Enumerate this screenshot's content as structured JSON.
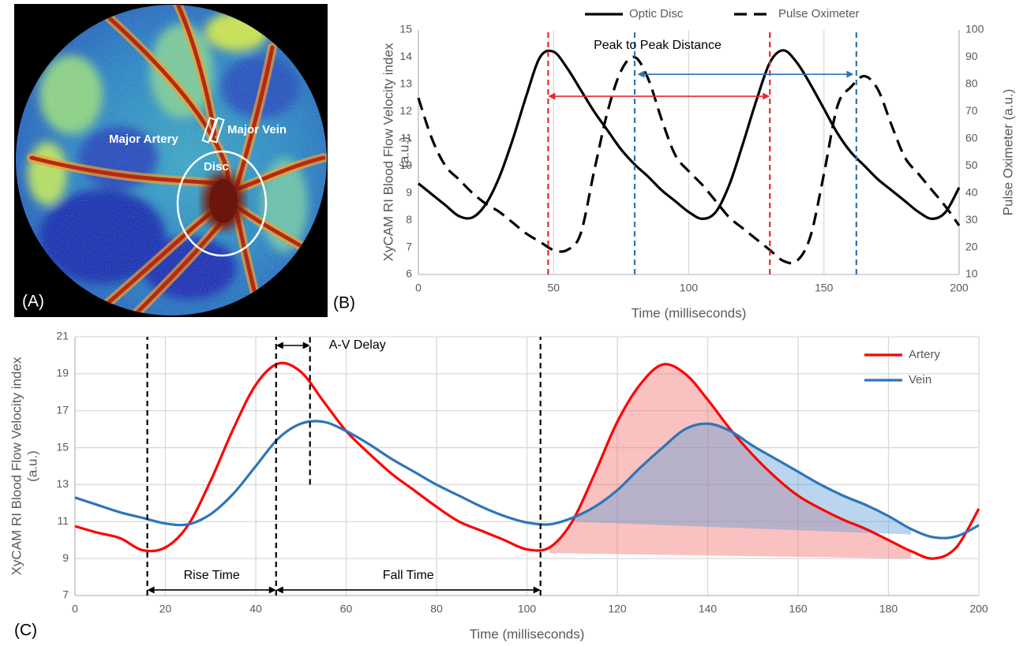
{
  "panel_a": {
    "panel_label": "(A)",
    "labels": [
      "Major Artery",
      "Major Vein",
      "Disc"
    ]
  },
  "chart_data": [
    {
      "type": "line",
      "panel_label": "(B)",
      "note": "Peak to Peak Distance",
      "x_label": "Time (milliseconds)",
      "y_label": [
        "XyCAM RI Blood Flow Velocity index",
        "(a.u.)"
      ],
      "y2_label": "Pulse Oximeter (a.u.)",
      "x": [
        0,
        5,
        10,
        15,
        20,
        25,
        30,
        35,
        40,
        45,
        50,
        55,
        60,
        65,
        70,
        75,
        80,
        85,
        90,
        95,
        100,
        105,
        110,
        115,
        120,
        125,
        130,
        135,
        140,
        145,
        150,
        155,
        160,
        165,
        170,
        175,
        180,
        185,
        190,
        195,
        200
      ],
      "series": [
        {
          "name": "Optic Disc",
          "color": "#000000",
          "dash": false,
          "values": [
            9.35,
            8.95,
            8.55,
            8.15,
            8.1,
            8.6,
            9.6,
            11.0,
            12.6,
            14.0,
            14.2,
            13.6,
            12.8,
            12.0,
            11.3,
            10.6,
            10.05,
            9.6,
            9.1,
            8.7,
            8.3,
            8.05,
            8.3,
            9.3,
            10.8,
            12.4,
            13.8,
            14.25,
            13.8,
            13.0,
            12.1,
            11.2,
            10.5,
            10.0,
            9.5,
            9.1,
            8.7,
            8.3,
            8.05,
            8.3,
            9.2
          ]
        },
        {
          "name": "Pulse Oximeter",
          "color": "#000000",
          "dash": true,
          "axis": "y2",
          "values": [
            75,
            60,
            50,
            45,
            40,
            36,
            33,
            29,
            25,
            22,
            19,
            19,
            25,
            48,
            70,
            85,
            90,
            82,
            67,
            54,
            48,
            43,
            37,
            31,
            27,
            23,
            19,
            15,
            15,
            24,
            47,
            72,
            79,
            83,
            78,
            65,
            53,
            47,
            41,
            35,
            28
          ]
        }
      ],
      "xlim": [
        0,
        200
      ],
      "xticks": [
        0,
        50,
        100,
        150,
        200
      ],
      "ylim": [
        6,
        15
      ],
      "yticks": [
        6,
        7,
        8,
        9,
        10,
        11,
        12,
        13,
        14,
        15
      ],
      "y2lim": [
        10,
        100
      ],
      "y2ticks": [
        10,
        20,
        30,
        40,
        50,
        60,
        70,
        80,
        90,
        100
      ],
      "grid": "x",
      "legend": "top",
      "reference_lines": [
        {
          "x": 48,
          "color": "#e8282b"
        },
        {
          "x": 130,
          "color": "#e8282b"
        },
        {
          "x": 80,
          "color": "#2e75b6"
        },
        {
          "x": 162,
          "color": "#2e75b6"
        }
      ],
      "arrows": [
        {
          "x": [
            48,
            130
          ],
          "y": 12.56,
          "color": "#e8282b"
        },
        {
          "x": [
            81,
            161
          ],
          "y": 13.37,
          "color": "#2e75b6"
        }
      ]
    },
    {
      "type": "line",
      "panel_label": "(C)",
      "x_label": "Time (milliseconds)",
      "y_label": [
        "XyCAM RI Blood Flow Velocity index",
        "(a.u.)"
      ],
      "x": [
        0,
        5,
        10,
        15,
        20,
        25,
        30,
        35,
        40,
        45,
        50,
        55,
        60,
        65,
        70,
        75,
        80,
        85,
        90,
        95,
        100,
        105,
        110,
        115,
        120,
        125,
        130,
        135,
        140,
        145,
        150,
        155,
        160,
        165,
        170,
        175,
        180,
        185,
        190,
        195,
        200
      ],
      "series": [
        {
          "name": "Artery",
          "color": "#ff0000",
          "dash": false,
          "values": [
            10.75,
            10.4,
            10.1,
            9.45,
            9.6,
            10.8,
            13.2,
            16.0,
            18.4,
            19.55,
            19.1,
            17.5,
            15.9,
            14.7,
            13.6,
            12.7,
            11.8,
            11.0,
            10.5,
            10.0,
            9.5,
            9.6,
            11.0,
            13.6,
            16.4,
            18.4,
            19.5,
            19.0,
            17.6,
            16.0,
            14.6,
            13.4,
            12.4,
            11.7,
            11.1,
            10.6,
            10.0,
            9.4,
            9.0,
            9.6,
            11.7
          ]
        },
        {
          "name": "Vein",
          "color": "#2e75b6",
          "dash": false,
          "values": [
            12.3,
            11.9,
            11.5,
            11.2,
            10.9,
            10.85,
            11.4,
            12.5,
            14.0,
            15.5,
            16.3,
            16.4,
            15.9,
            15.2,
            14.4,
            13.7,
            13.0,
            12.4,
            11.8,
            11.3,
            10.95,
            10.85,
            11.2,
            11.8,
            12.7,
            13.9,
            15.0,
            16.0,
            16.3,
            15.9,
            15.1,
            14.4,
            13.7,
            13.0,
            12.4,
            11.9,
            11.3,
            10.6,
            10.15,
            10.2,
            10.8
          ]
        }
      ],
      "xlim": [
        0,
        200
      ],
      "xticks": [
        0,
        20,
        40,
        60,
        80,
        100,
        120,
        140,
        160,
        180,
        200
      ],
      "ylim": [
        7,
        21
      ],
      "yticks": [
        7,
        9,
        11,
        13,
        15,
        17,
        19,
        21
      ],
      "grid": "both",
      "legend": "upper right",
      "shaded_areas": [
        {
          "series": 0,
          "x_range": [
            105,
            185
          ],
          "baseline": [
            9.3,
            9.0
          ],
          "color": "#f26b6b"
        },
        {
          "series": 1,
          "x_range": [
            110,
            185
          ],
          "baseline": [
            11.0,
            10.3
          ],
          "color": "#5b9bd5"
        }
      ],
      "reference_lines": [
        {
          "x": 16,
          "color": "#000000"
        },
        {
          "x": 44.5,
          "color": "#000000"
        },
        {
          "x": 52,
          "y_from": 13,
          "color": "#000000"
        },
        {
          "x": 103,
          "color": "#000000"
        }
      ],
      "arrows": [
        {
          "x": [
            44.5,
            52
          ],
          "y": 20.53,
          "color": "#000000",
          "label": "A-V Delay"
        },
        {
          "x": [
            16,
            44.5
          ],
          "y": 7.3,
          "color": "#000000",
          "label": "Rise Time"
        },
        {
          "x": [
            44.5,
            103
          ],
          "y": 7.3,
          "color": "#000000",
          "label": "Fall Time"
        }
      ]
    }
  ]
}
